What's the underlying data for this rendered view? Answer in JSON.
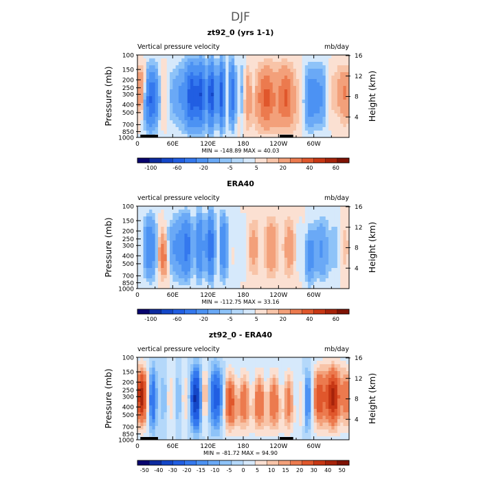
{
  "page_title": "DJF",
  "chart_data": [
    {
      "type": "heatmap",
      "title": "zt92_0 (yrs 1-1)",
      "left_label": "Vertical pressure velocity",
      "right_label": "mb/day",
      "ylabel": "Pressure (mb)",
      "ylabel_right": "Height (km)",
      "x_ticks": [
        "0",
        "60E",
        "120E",
        "180",
        "120W",
        "60W"
      ],
      "x_tick_lon": [
        0,
        60,
        120,
        180,
        240,
        300
      ],
      "xlim": [
        0,
        360
      ],
      "y_ticks": [
        "100",
        "150",
        "200",
        "250",
        "300",
        "400",
        "500",
        "700",
        "850",
        "1000"
      ],
      "y_tick_p": [
        100,
        150,
        200,
        250,
        300,
        400,
        500,
        700,
        850,
        1000
      ],
      "ylim": [
        100,
        1000
      ],
      "y_scale": "log",
      "height_ticks": [
        "4",
        "8",
        "12",
        "16"
      ],
      "height_tick_km": [
        4,
        8,
        12,
        16
      ],
      "stats": "MIN = -148.89   MAX =   40.03",
      "min": -148.89,
      "max": 40.03,
      "colorbar_labels": [
        "-100",
        "-60",
        "-20",
        "-5",
        "5",
        "20",
        "40",
        "60"
      ],
      "levels": [
        -120,
        -100,
        -80,
        -60,
        -40,
        -20,
        -10,
        -5,
        0,
        5,
        10,
        20,
        30,
        40,
        50,
        60
      ]
    },
    {
      "type": "heatmap",
      "title": "ERA40",
      "left_label": "vertical pressure velocity",
      "right_label": "mb/day",
      "ylabel": "Pressure (mb)",
      "ylabel_right": "Height (km)",
      "x_ticks": [
        "0",
        "60E",
        "120E",
        "180",
        "120W",
        "60W"
      ],
      "x_tick_lon": [
        0,
        60,
        120,
        180,
        240,
        300
      ],
      "xlim": [
        0,
        360
      ],
      "y_ticks": [
        "100",
        "150",
        "200",
        "250",
        "300",
        "400",
        "500",
        "700",
        "850",
        "1000"
      ],
      "y_tick_p": [
        100,
        150,
        200,
        250,
        300,
        400,
        500,
        700,
        850,
        1000
      ],
      "ylim": [
        100,
        1000
      ],
      "y_scale": "log",
      "height_ticks": [
        "4",
        "8",
        "12",
        "16"
      ],
      "height_tick_km": [
        4,
        8,
        12,
        16
      ],
      "stats": "MIN = -112.75   MAX =   33.16",
      "min": -112.75,
      "max": 33.16,
      "colorbar_labels": [
        "-100",
        "-60",
        "-20",
        "-5",
        "5",
        "20",
        "40",
        "60"
      ],
      "levels": [
        -120,
        -100,
        -80,
        -60,
        -40,
        -20,
        -10,
        -5,
        0,
        5,
        10,
        20,
        30,
        40,
        50,
        60
      ]
    },
    {
      "type": "heatmap",
      "title": "zt92_0 - ERA40",
      "left_label": "vertical pressure velocity",
      "right_label": "mb/day",
      "ylabel": "Pressure (mb)",
      "ylabel_right": "Height (km)",
      "x_ticks": [
        "0",
        "60E",
        "120E",
        "180",
        "120W",
        "60W"
      ],
      "x_tick_lon": [
        0,
        60,
        120,
        180,
        240,
        300
      ],
      "xlim": [
        0,
        360
      ],
      "y_ticks": [
        "100",
        "150",
        "200",
        "250",
        "300",
        "400",
        "500",
        "700",
        "850",
        "1000"
      ],
      "y_tick_p": [
        100,
        150,
        200,
        250,
        300,
        400,
        500,
        700,
        850,
        1000
      ],
      "ylim": [
        100,
        1000
      ],
      "y_scale": "log",
      "height_ticks": [
        "4",
        "8",
        "12",
        "16"
      ],
      "height_tick_km": [
        4,
        8,
        12,
        16
      ],
      "stats": "MIN =  -81.72   MAX =   94.90",
      "min": -81.72,
      "max": 94.9,
      "colorbar_labels": [
        "-50",
        "-40",
        "-30",
        "-20",
        "-15",
        "-10",
        "-5",
        "0",
        "5",
        "10",
        "15",
        "20",
        "30",
        "40",
        "50"
      ],
      "levels": [
        -60,
        -50,
        -40,
        -30,
        -20,
        -15,
        -10,
        -5,
        0,
        5,
        10,
        15,
        20,
        30,
        40,
        50,
        60
      ]
    }
  ],
  "colorbar_colors": [
    "#08046e",
    "#0d2b9f",
    "#1447c8",
    "#215ee2",
    "#3478ee",
    "#4c92f3",
    "#6aa9f6",
    "#8ec3f8",
    "#b4d8fa",
    "#d6e9fb",
    "#fbe0d2",
    "#f8c4a8",
    "#f3a07a",
    "#ec7a4e",
    "#e0572c",
    "#c73714",
    "#a6230a",
    "#7e1204"
  ]
}
